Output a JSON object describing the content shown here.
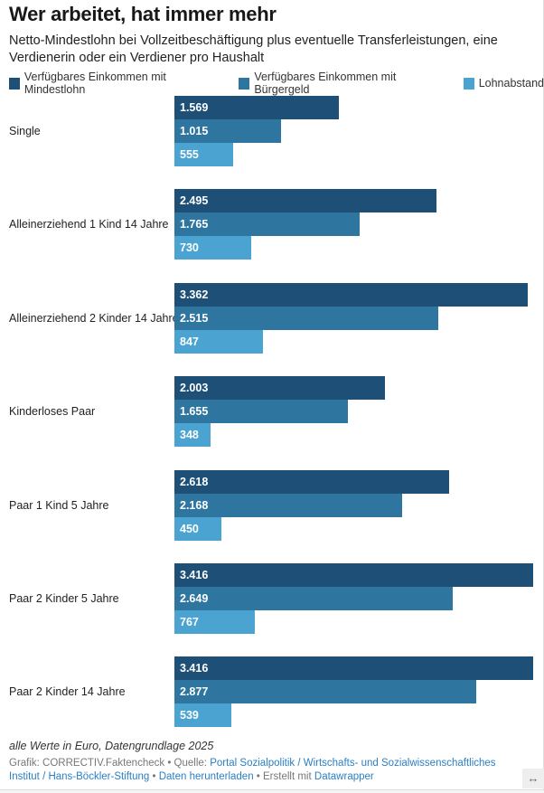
{
  "title": "Wer arbeitet, hat immer mehr",
  "subtitle": "Netto-Mindestlohn bei Vollzeitbeschäftigung plus eventuelle Transferleistungen, eine Verdienerin oder ein Verdiener pro Haushalt",
  "note": "alle Werte in Euro, Datengrundlage 2025",
  "credits": {
    "grafik": "Grafik: CORRECTIV.Faktencheck",
    "sep": " • ",
    "quelle_label": "Quelle: ",
    "quelle_link": "Portal Sozialpolitik / Wirtschafts- und Sozialwissenschaftliches Institut / Hans-Böckler-Stiftung",
    "download": "Daten herunterladen",
    "erstellt": "Erstellt mit ",
    "datawrapper": "Datawrapper"
  },
  "resize_icon": "horizontal-arrows-icon",
  "chart_data": {
    "type": "bar",
    "orientation": "horizontal",
    "grouped": true,
    "categories": [
      "Single",
      "Alleinerziehend 1 Kind 14 Jahre",
      "Alleinerziehend 2 Kinder 14 Jahre",
      "Kinderloses Paar",
      "Paar 1 Kind 5 Jahre",
      "Paar 2 Kinder 5 Jahre",
      "Paar 2 Kinder 14 Jahre"
    ],
    "series": [
      {
        "name": "Verfügbares Einkommen mit Mindestlohn",
        "color": "#1e4f77",
        "values": [
          1569,
          2495,
          3362,
          2003,
          2618,
          3416,
          3416
        ]
      },
      {
        "name": "Verfügbares Einkommen mit Bürgergeld",
        "color": "#2e76a0",
        "values": [
          1015,
          1765,
          2515,
          1655,
          2168,
          2649,
          2877
        ]
      },
      {
        "name": "Lohnabstand",
        "color": "#4aa3d1",
        "values": [
          555,
          730,
          847,
          348,
          450,
          767,
          539
        ]
      }
    ],
    "value_labels": [
      [
        "1.569",
        "2.495",
        "3.362",
        "2.003",
        "2.618",
        "3.416",
        "3.416"
      ],
      [
        "1.015",
        "1.765",
        "2.515",
        "1.655",
        "2.168",
        "2.649",
        "2.877"
      ],
      [
        "555",
        "730",
        "847",
        "348",
        "450",
        "767",
        "539"
      ]
    ],
    "xlim": [
      0,
      3416
    ],
    "legend_position": "top-left",
    "grid": false
  }
}
